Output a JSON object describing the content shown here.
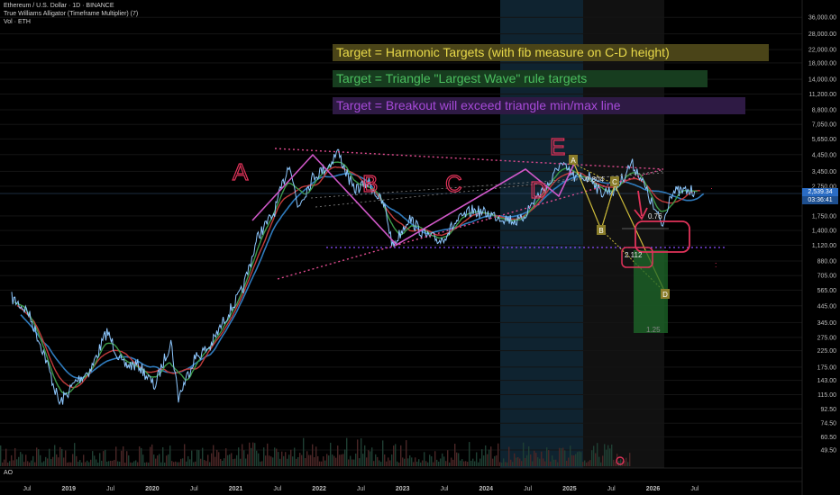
{
  "legend": {
    "symbol_line": "Ethereum / U.S. Dollar · 1D · BINANCE",
    "indicator_line": "True Williams Alligator (Timeframe Multiplier) (7)",
    "volume_line": "Vol · ETH",
    "ao_label": "AO"
  },
  "annotations": [
    {
      "text": "Target = Harmonic Targets (with fib measure on C-D height)",
      "color": "#e8d94a",
      "bg": "#4a4418"
    },
    {
      "text": "Target = Triangle \"Largest Wave\" rule targets",
      "color": "#4bbf5f",
      "bg": "#173d1f"
    },
    {
      "text": "Target = Breakout will exceed triangle min/max line",
      "color": "#a64ad8",
      "bg": "#2e1a44"
    }
  ],
  "wave_labels": [
    "A",
    "B",
    "C",
    "D",
    "E"
  ],
  "pattern_points": [
    "A",
    "B",
    "C",
    "D"
  ],
  "fib_labels": [
    "0.804",
    "0.76",
    "2.112",
    "1.25"
  ],
  "current_price": {
    "value": "2,539.34",
    "countdown": "03:36:41"
  },
  "colors": {
    "price_line": "#8ec8ff",
    "jaw": "#2f7bbd",
    "teeth": "#c23b3b",
    "lips": "#3d9a48",
    "triangle": "#e04b8f",
    "waves": "#d058c8",
    "support": "#8a4cff",
    "harmonic": "#cdbb3a",
    "target_box": "#1e6a2a"
  },
  "chart_data": {
    "type": "line",
    "y_scale": "log",
    "ylim": [
      45,
      42000
    ],
    "y_ticks": [
      "36,000.00",
      "28,000.00",
      "22,000.00",
      "18,000.00",
      "14,000.00",
      "11,200.00",
      "8,800.00",
      "7,050.00",
      "5,650.00",
      "4,450.00",
      "3,450.00",
      "2,750.00",
      "1,750.00",
      "1,400.00",
      "1,120.00",
      "880.00",
      "705.00",
      "565.00",
      "445.00",
      "345.00",
      "275.00",
      "225.00",
      "175.00",
      "143.00",
      "115.00",
      "92.50",
      "74.50",
      "60.50",
      "49.50"
    ],
    "x_ticks": [
      "Jul",
      "2019",
      "Jul",
      "2020",
      "Jul",
      "2021",
      "Jul",
      "2022",
      "Jul",
      "2023",
      "Jul",
      "2024",
      "Jul",
      "2025",
      "Jul",
      "2026",
      "Jul"
    ],
    "series": [
      {
        "x": [
          "2018-06",
          "2018-08",
          "2018-10",
          "2018-12",
          "2019-02",
          "2019-04",
          "2019-06",
          "2019-08",
          "2019-10",
          "2019-12",
          "2020-02",
          "2020-03",
          "2020-05",
          "2020-07",
          "2020-09",
          "2020-11",
          "2021-01",
          "2021-03",
          "2021-05",
          "2021-06",
          "2021-08",
          "2021-10",
          "2021-11",
          "2022-01",
          "2022-03",
          "2022-05",
          "2022-06",
          "2022-08",
          "2022-10",
          "2022-12",
          "2023-02",
          "2023-04",
          "2023-06",
          "2023-08",
          "2023-10",
          "2023-12",
          "2024-02",
          "2024-03",
          "2024-05",
          "2024-07",
          "2024-08",
          "2024-10",
          "2024-12",
          "2025-01",
          "2025-03",
          "2025-04",
          "2025-05",
          "2025-07",
          "2025-08"
        ],
        "values": [
          500,
          410,
          220,
          100,
          140,
          170,
          300,
          180,
          180,
          130,
          260,
          110,
          200,
          240,
          380,
          560,
          1300,
          1800,
          4000,
          2000,
          3200,
          3800,
          4700,
          2600,
          2900,
          2000,
          1100,
          1700,
          1300,
          1200,
          1600,
          1900,
          1800,
          1700,
          1600,
          2300,
          3000,
          3900,
          3100,
          3200,
          2500,
          2600,
          3900,
          3300,
          1900,
          1500,
          2500,
          2550,
          2539
        ]
      }
    ]
  }
}
